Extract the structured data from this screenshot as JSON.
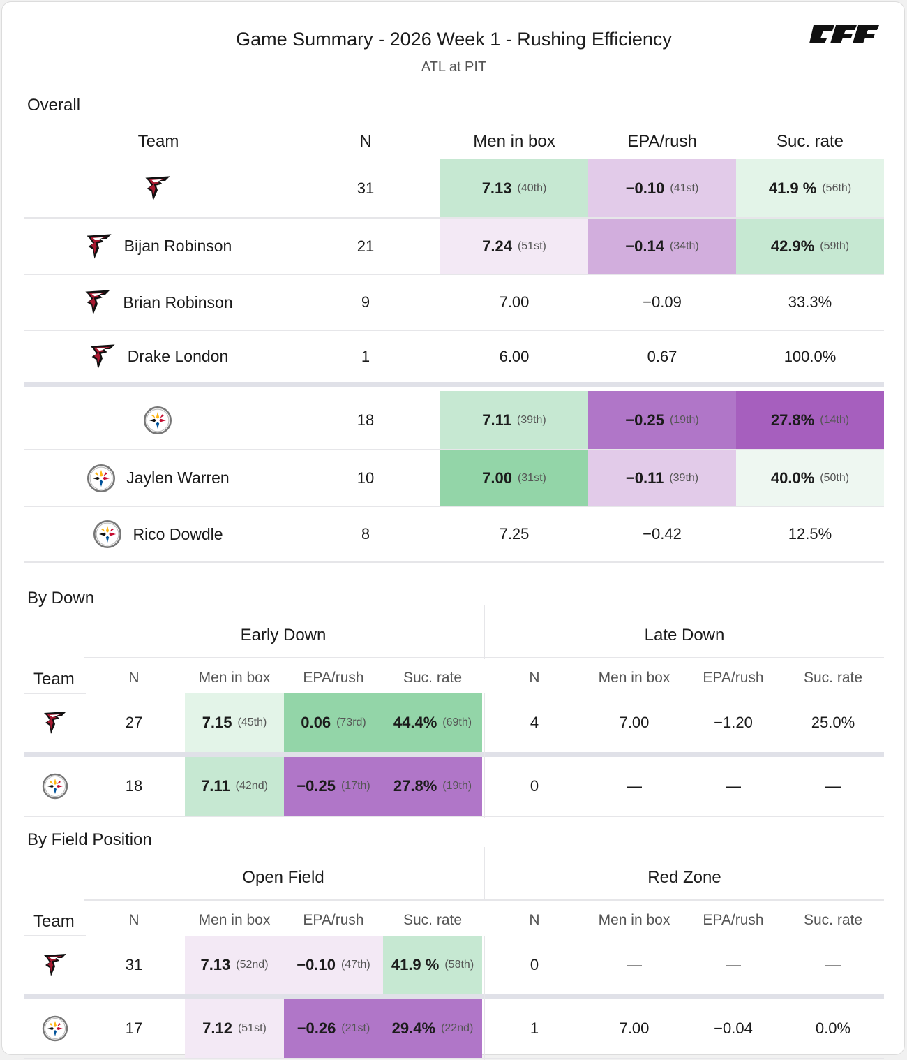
{
  "header": {
    "title": "Game Summary - 2026 Week 1 - Rushing Efficiency",
    "subtitle": "ATL at PIT",
    "logo_text": "PFF"
  },
  "colors": {
    "green_light": "#e3f4e8",
    "green_mid": "#c6e8d2",
    "green_strong": "#93d5a8",
    "purple_pale": "#f3e9f5",
    "purple_light": "#e2cbe9",
    "purple_mid": "#d2aedd",
    "purple_strong": "#b076c8",
    "purple_deep": "#a65fbe"
  },
  "overall": {
    "section_label": "Overall",
    "columns": {
      "team": "Team",
      "n": "N",
      "box": "Men in box",
      "epa": "EPA/rush",
      "suc": "Suc. rate"
    },
    "rows": [
      {
        "team_icon": "falcons-logo-icon",
        "name": "",
        "n": "31",
        "box": "7.13",
        "box_rk": "(40th)",
        "epa": "−0.10",
        "epa_rk": "(41st)",
        "suc": "41.9 %",
        "suc_rk": "(56th)"
      },
      {
        "team_icon": "falcons-logo-icon",
        "name": "Bijan Robinson",
        "n": "21",
        "box": "7.24",
        "box_rk": "(51st)",
        "epa": "−0.14",
        "epa_rk": "(34th)",
        "suc": "42.9%",
        "suc_rk": "(59th)"
      },
      {
        "team_icon": "falcons-logo-icon",
        "name": "Brian Robinson",
        "n": "9",
        "box": "7.00",
        "epa": "−0.09",
        "suc": "33.3%"
      },
      {
        "team_icon": "falcons-logo-icon",
        "name": "Drake London",
        "n": "1",
        "box": "6.00",
        "epa": "0.67",
        "suc": "100.0%"
      },
      {
        "team_icon": "steelers-logo-icon",
        "name": "",
        "n": "18",
        "box": "7.11",
        "box_rk": "(39th)",
        "epa": "−0.25",
        "epa_rk": "(19th)",
        "suc": "27.8%",
        "suc_rk": "(14th)"
      },
      {
        "team_icon": "steelers-logo-icon",
        "name": "Jaylen Warren",
        "n": "10",
        "box": "7.00",
        "box_rk": "(31st)",
        "epa": "−0.11",
        "epa_rk": "(39th)",
        "suc": "40.0%",
        "suc_rk": "(50th)"
      },
      {
        "team_icon": "steelers-logo-icon",
        "name": "Rico Dowdle",
        "n": "8",
        "box": "7.25",
        "epa": "−0.42",
        "suc": "12.5%"
      }
    ]
  },
  "by_down": {
    "section_label": "By Down",
    "group_left": "Early Down",
    "group_right": "Late Down",
    "team_label": "Team",
    "cols": {
      "n": "N",
      "box": "Men in box",
      "epa": "EPA/rush",
      "suc": "Suc. rate"
    },
    "rows": [
      {
        "team_icon": "falcons-logo-icon",
        "l_n": "27",
        "l_box": "7.15",
        "l_box_rk": "(45th)",
        "l_epa": "0.06",
        "l_epa_rk": "(73rd)",
        "l_suc": "44.4%",
        "l_suc_rk": "(69th)",
        "r_n": "4",
        "r_box": "7.00",
        "r_epa": "−1.20",
        "r_suc": "25.0%"
      },
      {
        "team_icon": "steelers-logo-icon",
        "l_n": "18",
        "l_box": "7.11",
        "l_box_rk": "(42nd)",
        "l_epa": "−0.25",
        "l_epa_rk": "(17th)",
        "l_suc": "27.8%",
        "l_suc_rk": "(19th)",
        "r_n": "0",
        "r_box": "—",
        "r_epa": "—",
        "r_suc": "—"
      }
    ]
  },
  "by_field": {
    "section_label": "By Field Position",
    "group_left": "Open Field",
    "group_right": "Red Zone",
    "team_label": "Team",
    "cols": {
      "n": "N",
      "box": "Men in box",
      "epa": "EPA/rush",
      "suc": "Suc. rate"
    },
    "rows": [
      {
        "team_icon": "falcons-logo-icon",
        "l_n": "31",
        "l_box": "7.13",
        "l_box_rk": "(52nd)",
        "l_epa": "−0.10",
        "l_epa_rk": "(47th)",
        "l_suc": "41.9 %",
        "l_suc_rk": "(58th)",
        "r_n": "0",
        "r_box": "—",
        "r_epa": "—",
        "r_suc": "—"
      },
      {
        "team_icon": "steelers-logo-icon",
        "l_n": "17",
        "l_box": "7.12",
        "l_box_rk": "(51st)",
        "l_epa": "−0.26",
        "l_epa_rk": "(21st)",
        "l_suc": "29.4%",
        "l_suc_rk": "(22nd)",
        "r_n": "1",
        "r_box": "7.00",
        "r_epa": "−0.04",
        "r_suc": "0.0%"
      }
    ]
  }
}
